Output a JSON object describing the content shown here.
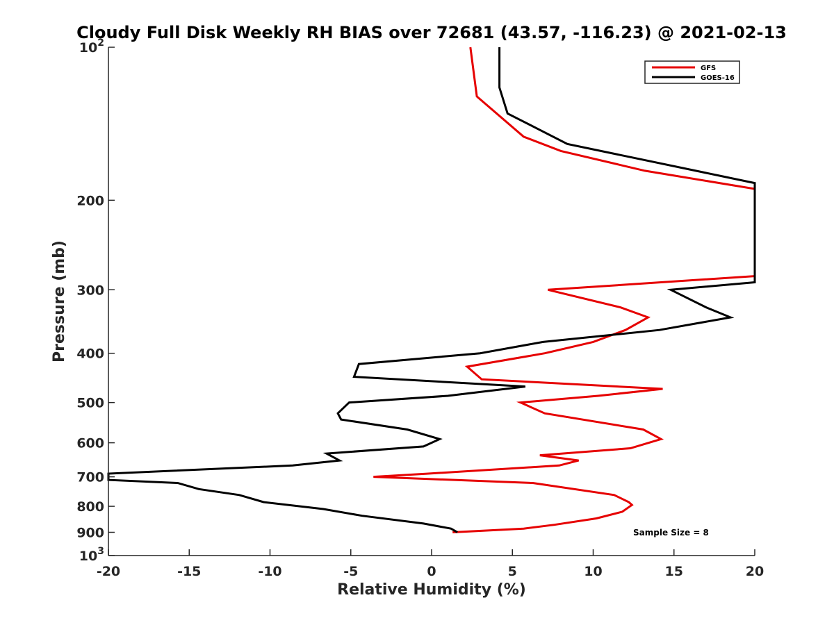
{
  "chart_data": {
    "type": "line",
    "title": "Cloudy Full Disk Weekly RH BIAS over 72681 (43.57, -116.23) @ 2021-02-13",
    "xlabel": "Relative Humidity (%)",
    "ylabel": "Pressure (mb)",
    "xlim": [
      -20,
      20
    ],
    "ylim": [
      100,
      1000
    ],
    "y_scale": "log",
    "y_reversed": true,
    "grid": false,
    "legend_position": "top-right",
    "x_ticks": [
      "-20",
      "-15",
      "-10",
      "-5",
      "0",
      "5",
      "10",
      "15",
      "20"
    ],
    "y_ticks": [
      {
        "value": 100,
        "base": "10",
        "exp": "2"
      },
      {
        "value": 200,
        "label": "200"
      },
      {
        "value": 300,
        "label": "300"
      },
      {
        "value": 400,
        "label": "400"
      },
      {
        "value": 500,
        "label": "500"
      },
      {
        "value": 600,
        "label": "600"
      },
      {
        "value": 700,
        "label": "700"
      },
      {
        "value": 800,
        "label": "800"
      },
      {
        "value": 900,
        "label": "900"
      },
      {
        "value": 1000,
        "base": "10",
        "exp": "3"
      }
    ],
    "annotation": "Sample Size = 8",
    "series": [
      {
        "name": "GFS",
        "color": "#e60000",
        "points": [
          [
            2.4,
            100
          ],
          [
            2.8,
            125
          ],
          [
            5.7,
            150
          ],
          [
            8.0,
            160
          ],
          [
            13.2,
            175
          ],
          [
            20.0,
            190
          ],
          [
            20.0,
            282
          ],
          [
            7.2,
            300
          ],
          [
            11.7,
            325
          ],
          [
            13.4,
            340
          ],
          [
            12.0,
            360
          ],
          [
            10.0,
            380
          ],
          [
            7.0,
            400
          ],
          [
            2.2,
            425
          ],
          [
            3.1,
            450
          ],
          [
            14.3,
            470
          ],
          [
            10.3,
            485
          ],
          [
            5.5,
            500
          ],
          [
            7.0,
            525
          ],
          [
            13.1,
            565
          ],
          [
            14.2,
            590
          ],
          [
            12.3,
            615
          ],
          [
            6.7,
            635
          ],
          [
            9.1,
            650
          ],
          [
            7.9,
            665
          ],
          [
            -0.2,
            690
          ],
          [
            -3.6,
            700
          ],
          [
            6.3,
            720
          ],
          [
            11.3,
            760
          ],
          [
            12.2,
            785
          ],
          [
            12.4,
            795
          ],
          [
            11.8,
            820
          ],
          [
            10.2,
            845
          ],
          [
            7.6,
            870
          ],
          [
            5.7,
            885
          ],
          [
            1.3,
            900
          ]
        ]
      },
      {
        "name": "GOES-16",
        "color": "#000000",
        "points": [
          [
            4.2,
            100
          ],
          [
            4.2,
            120
          ],
          [
            4.7,
            135
          ],
          [
            8.4,
            155
          ],
          [
            12.5,
            165
          ],
          [
            18.2,
            180
          ],
          [
            20.0,
            185
          ],
          [
            20.0,
            290
          ],
          [
            14.8,
            300
          ],
          [
            17.0,
            325
          ],
          [
            18.5,
            340
          ],
          [
            14.1,
            360
          ],
          [
            6.9,
            380
          ],
          [
            3.0,
            400
          ],
          [
            -4.5,
            420
          ],
          [
            -4.8,
            445
          ],
          [
            5.8,
            465
          ],
          [
            1.0,
            485
          ],
          [
            -5.1,
            500
          ],
          [
            -5.8,
            525
          ],
          [
            -5.6,
            540
          ],
          [
            -1.5,
            565
          ],
          [
            0.5,
            590
          ],
          [
            -0.5,
            610
          ],
          [
            -6.5,
            630
          ],
          [
            -5.7,
            650
          ],
          [
            -8.6,
            665
          ],
          [
            -20.0,
            690
          ],
          [
            -20.0,
            710
          ],
          [
            -15.7,
            720
          ],
          [
            -14.4,
            740
          ],
          [
            -11.9,
            760
          ],
          [
            -10.4,
            785
          ],
          [
            -6.7,
            810
          ],
          [
            -4.3,
            835
          ],
          [
            -0.5,
            865
          ],
          [
            1.2,
            885
          ],
          [
            1.6,
            900
          ]
        ]
      }
    ]
  }
}
